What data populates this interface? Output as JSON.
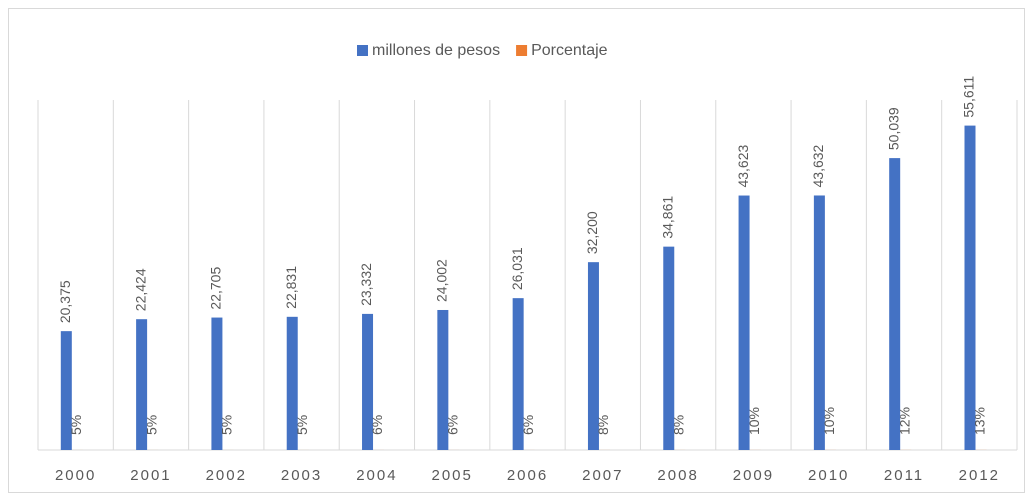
{
  "chart_data": {
    "type": "bar",
    "categories": [
      "2000",
      "2001",
      "2002",
      "2003",
      "2004",
      "2005",
      "2006",
      "2007",
      "2008",
      "2009",
      "2010",
      "2011",
      "2012"
    ],
    "series": [
      {
        "name": "millones de pesos",
        "color": "#4472c4",
        "values": [
          20375,
          22424,
          22705,
          22831,
          23332,
          24002,
          26031,
          32200,
          34861,
          43623,
          43632,
          50039,
          55611
        ],
        "value_labels": [
          "20,375",
          "22,424",
          "22,705",
          "22,831",
          "23,332",
          "24,002",
          "26,031",
          "32,200",
          "34,861",
          "43,623",
          "43,632",
          "50,039",
          "55,611"
        ]
      },
      {
        "name": "Porcentaje",
        "color": "#ed7d31",
        "values": [
          5,
          5,
          5,
          5,
          6,
          6,
          6,
          8,
          8,
          10,
          10,
          12,
          13
        ],
        "value_labels": [
          "5%",
          "5%",
          "5%",
          "5%",
          "6%",
          "6%",
          "6%",
          "8%",
          "8%",
          "10%",
          "10%",
          "12%",
          "13%"
        ]
      }
    ],
    "ylim": [
      0,
      60000
    ],
    "legend": "top"
  }
}
